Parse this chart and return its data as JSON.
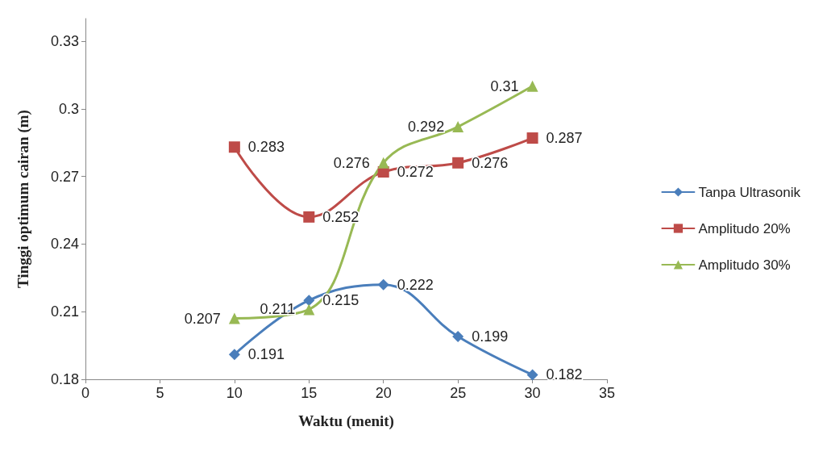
{
  "chart_data": {
    "type": "line",
    "xlabel": "Waktu (menit)",
    "ylabel": "Tinggi optimum cairan (m)",
    "xlim": [
      0,
      35
    ],
    "xticks": [
      0,
      5,
      10,
      15,
      20,
      25,
      30,
      35
    ],
    "ylim": [
      0.18,
      0.34
    ],
    "yticks": [
      0.18,
      0.21,
      0.24,
      0.27,
      0.3,
      0.33
    ],
    "grid": false,
    "legend": "right",
    "data_labels": true,
    "series": [
      {
        "name": "Tanpa Ultrasonik",
        "color": "#4a7ebb",
        "marker": "diamond",
        "x": [
          10,
          15,
          20,
          25,
          30
        ],
        "values": [
          0.191,
          0.215,
          0.222,
          0.199,
          0.182
        ]
      },
      {
        "name": "Amplitudo 20%",
        "color": "#be4b48",
        "marker": "square",
        "x": [
          10,
          15,
          20,
          25,
          30
        ],
        "values": [
          0.283,
          0.252,
          0.272,
          0.276,
          0.287
        ]
      },
      {
        "name": "Amplitudo 30%",
        "color": "#98b954",
        "marker": "triangle",
        "x": [
          10,
          15,
          20,
          25,
          30
        ],
        "values": [
          0.207,
          0.211,
          0.276,
          0.292,
          0.31
        ]
      }
    ]
  }
}
